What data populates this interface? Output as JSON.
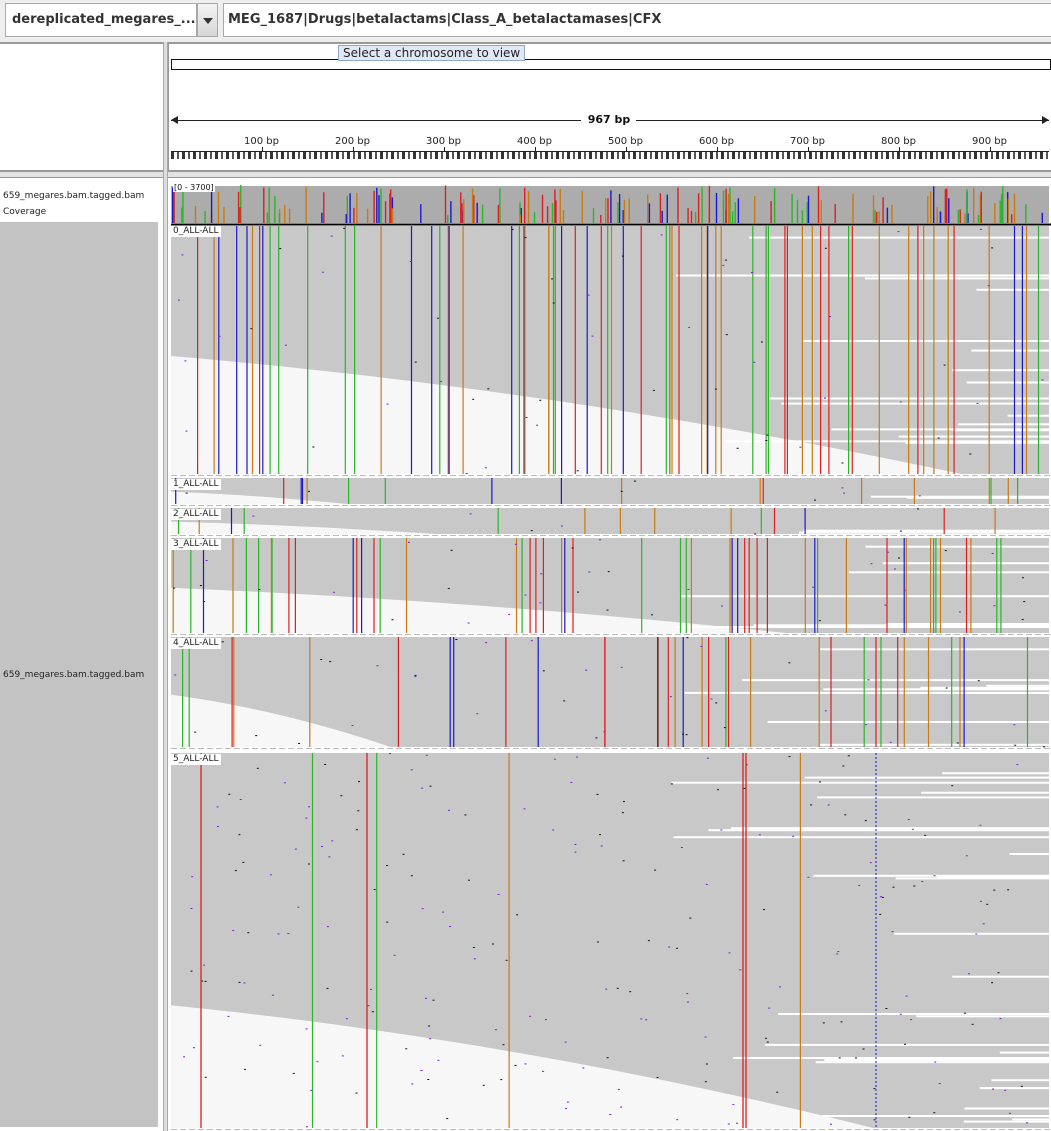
{
  "toolbar": {
    "genome": "dereplicated_megares_...",
    "locus": "MEG_1687|Drugs|betalactams|Class_A_betalactamases|CFX"
  },
  "tooltip": "Select a chromosome to view",
  "ruler": {
    "span_label": "967 bp",
    "ticks": [
      "100 bp",
      "200 bp",
      "300 bp",
      "400 bp",
      "500 bp",
      "600 bp",
      "700 bp",
      "800 bp",
      "900 bp"
    ]
  },
  "tracks": {
    "coverage_name": "659_megares.bam.tagged.bam Coverage",
    "alignment_name": "659_megares.bam.tagged.bam",
    "coverage_range": "[0 - 3700]"
  },
  "groups": [
    "0_ALL-ALL",
    "1_ALL-ALL",
    "2_ALL-ALL",
    "3_ALL-ALL",
    "4_ALL-ALL",
    "5_ALL-ALL"
  ],
  "colors": {
    "read_fill": "#c8c8c8",
    "coverage_fill": "#acacac",
    "mismatch_A": "#2ab52a",
    "mismatch_C": "#1a1acc",
    "mismatch_G": "#c97a12",
    "mismatch_T": "#dd1f1f",
    "insertion": "#7a1fd6"
  }
}
